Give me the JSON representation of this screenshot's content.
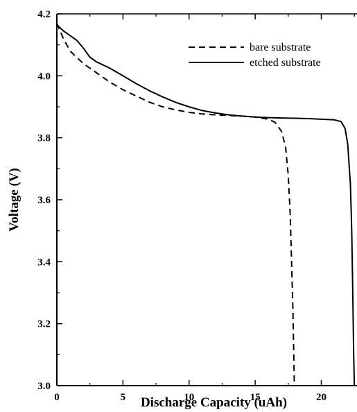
{
  "chart_data": {
    "type": "line",
    "title": "",
    "xlabel": "Discharge Capacity (uAh)",
    "ylabel": "Voltage (V)",
    "xlim": [
      0,
      22.7
    ],
    "ylim": [
      3.0,
      4.2
    ],
    "x_ticks": [
      0,
      5,
      10,
      15,
      20
    ],
    "y_ticks": [
      3.0,
      3.2,
      3.4,
      3.6,
      3.8,
      4.0,
      4.2
    ],
    "x_tick_labels": [
      "0",
      "5",
      "10",
      "15",
      "20"
    ],
    "y_tick_labels": [
      "3.0",
      "3.2",
      "3.4",
      "3.6",
      "3.8",
      "4.0",
      "4.2"
    ],
    "grid": false,
    "legend_position": "top-right",
    "series": [
      {
        "name": "bare substrate",
        "style": "dashed",
        "color": "#000000",
        "points": [
          [
            0.0,
            4.17
          ],
          [
            0.5,
            4.12
          ],
          [
            1.0,
            4.08
          ],
          [
            2.0,
            4.04
          ],
          [
            3.0,
            4.01
          ],
          [
            4.0,
            3.98
          ],
          [
            5.0,
            3.955
          ],
          [
            6.0,
            3.935
          ],
          [
            7.0,
            3.915
          ],
          [
            8.0,
            3.9
          ],
          [
            9.0,
            3.89
          ],
          [
            10.0,
            3.882
          ],
          [
            11.0,
            3.877
          ],
          [
            12.0,
            3.874
          ],
          [
            13.0,
            3.872
          ],
          [
            14.0,
            3.87
          ],
          [
            15.0,
            3.867
          ],
          [
            16.0,
            3.86
          ],
          [
            16.5,
            3.85
          ],
          [
            17.0,
            3.82
          ],
          [
            17.3,
            3.77
          ],
          [
            17.5,
            3.68
          ],
          [
            17.65,
            3.55
          ],
          [
            17.75,
            3.4
          ],
          [
            17.85,
            3.25
          ],
          [
            17.92,
            3.1
          ],
          [
            17.96,
            3.0
          ]
        ]
      },
      {
        "name": "etched substrate",
        "style": "solid",
        "color": "#000000",
        "points": [
          [
            0.0,
            4.165
          ],
          [
            0.5,
            4.145
          ],
          [
            1.0,
            4.13
          ],
          [
            1.5,
            4.115
          ],
          [
            2.0,
            4.09
          ],
          [
            2.5,
            4.06
          ],
          [
            3.0,
            4.045
          ],
          [
            4.0,
            4.025
          ],
          [
            5.0,
            4.0
          ],
          [
            6.0,
            3.975
          ],
          [
            7.0,
            3.952
          ],
          [
            8.0,
            3.932
          ],
          [
            9.0,
            3.914
          ],
          [
            10.0,
            3.9
          ],
          [
            11.0,
            3.888
          ],
          [
            12.0,
            3.88
          ],
          [
            13.0,
            3.874
          ],
          [
            14.0,
            3.87
          ],
          [
            15.0,
            3.867
          ],
          [
            16.0,
            3.865
          ],
          [
            17.0,
            3.864
          ],
          [
            18.0,
            3.863
          ],
          [
            19.0,
            3.862
          ],
          [
            20.0,
            3.86
          ],
          [
            21.0,
            3.858
          ],
          [
            21.5,
            3.852
          ],
          [
            21.8,
            3.83
          ],
          [
            22.0,
            3.78
          ],
          [
            22.2,
            3.65
          ],
          [
            22.3,
            3.5
          ],
          [
            22.38,
            3.3
          ],
          [
            22.45,
            3.1
          ],
          [
            22.5,
            3.0
          ]
        ]
      }
    ]
  }
}
